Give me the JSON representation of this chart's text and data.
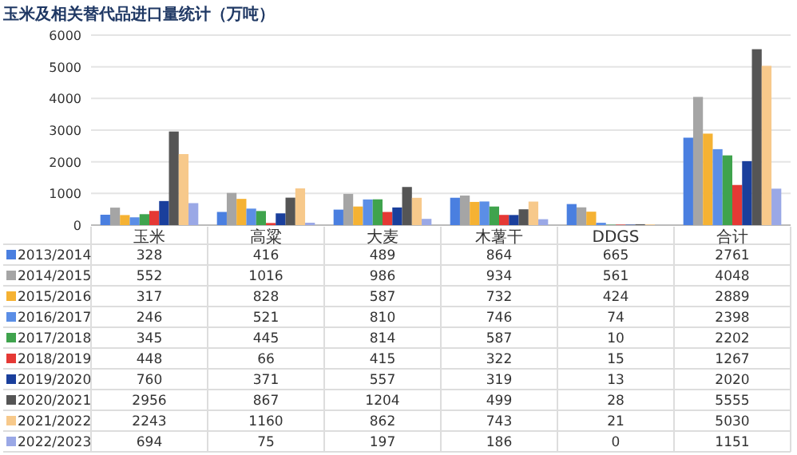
{
  "chart_data": {
    "type": "bar",
    "title": "玉米及相关替代品进口量统计（万吨）",
    "categories": [
      "玉米",
      "高粱",
      "大麦",
      "木薯干",
      "DDGS",
      "合计"
    ],
    "series": [
      {
        "name": "2013/2014",
        "color": "#4a7fe0",
        "values": [
          328,
          416,
          489,
          864,
          665,
          2761
        ]
      },
      {
        "name": "2014/2015",
        "color": "#a5a5a5",
        "values": [
          552,
          1016,
          986,
          934,
          561,
          4048
        ]
      },
      {
        "name": "2015/2016",
        "color": "#f5b233",
        "values": [
          317,
          828,
          587,
          732,
          424,
          2889
        ]
      },
      {
        "name": "2016/2017",
        "color": "#5b8ee6",
        "values": [
          246,
          521,
          810,
          746,
          74,
          2398
        ]
      },
      {
        "name": "2017/2018",
        "color": "#3fa34d",
        "values": [
          345,
          445,
          814,
          587,
          10,
          2202
        ]
      },
      {
        "name": "2018/2019",
        "color": "#e53935",
        "values": [
          448,
          66,
          415,
          322,
          15,
          1267
        ]
      },
      {
        "name": "2019/2020",
        "color": "#1a3f9c",
        "values": [
          760,
          371,
          557,
          319,
          13,
          2020
        ]
      },
      {
        "name": "2020/2021",
        "color": "#555555",
        "values": [
          2956,
          867,
          1204,
          499,
          28,
          5555
        ]
      },
      {
        "name": "2021/2022",
        "color": "#f7c98b",
        "values": [
          2243,
          1160,
          862,
          743,
          21,
          5030
        ]
      },
      {
        "name": "2022/2023",
        "color": "#9aa8e6",
        "values": [
          694,
          75,
          197,
          186,
          0,
          1151
        ]
      }
    ],
    "ylim": [
      0,
      6000
    ],
    "yticks": [
      0,
      1000,
      2000,
      3000,
      4000,
      5000,
      6000
    ],
    "grid": "y",
    "legend": "bottom left",
    "data_labels": true
  }
}
